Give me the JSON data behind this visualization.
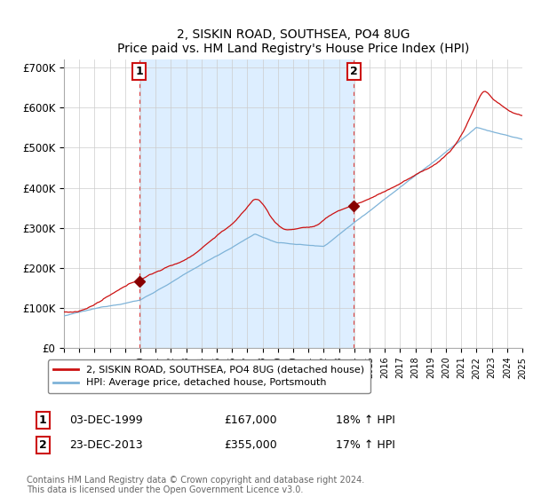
{
  "title": "2, SISKIN ROAD, SOUTHSEA, PO4 8UG",
  "subtitle": "Price paid vs. HM Land Registry's House Price Index (HPI)",
  "ylabel_ticks": [
    "£0",
    "£100K",
    "£200K",
    "£300K",
    "£400K",
    "£500K",
    "£600K",
    "£700K"
  ],
  "ytick_values": [
    0,
    100000,
    200000,
    300000,
    400000,
    500000,
    600000,
    700000
  ],
  "ylim": [
    0,
    720000
  ],
  "hpi_color": "#7eb3d8",
  "price_color": "#cc1111",
  "shade_color": "#ddeeff",
  "marker1_year": 1999.92,
  "marker1_price": 167000,
  "marker2_year": 2013.98,
  "marker2_price": 355000,
  "marker1_date": "03-DEC-1999",
  "marker1_pricetxt": "£167,000",
  "marker1_hpi": "18% ↑ HPI",
  "marker2_date": "23-DEC-2013",
  "marker2_pricetxt": "£355,000",
  "marker2_hpi": "17% ↑ HPI",
  "legend_label1": "2, SISKIN ROAD, SOUTHSEA, PO4 8UG (detached house)",
  "legend_label2": "HPI: Average price, detached house, Portsmouth",
  "footnote": "Contains HM Land Registry data © Crown copyright and database right 2024.\nThis data is licensed under the Open Government Licence v3.0.",
  "xmin": 1995,
  "xmax": 2025,
  "dashed_x1": 1999.92,
  "dashed_x2": 2013.98
}
